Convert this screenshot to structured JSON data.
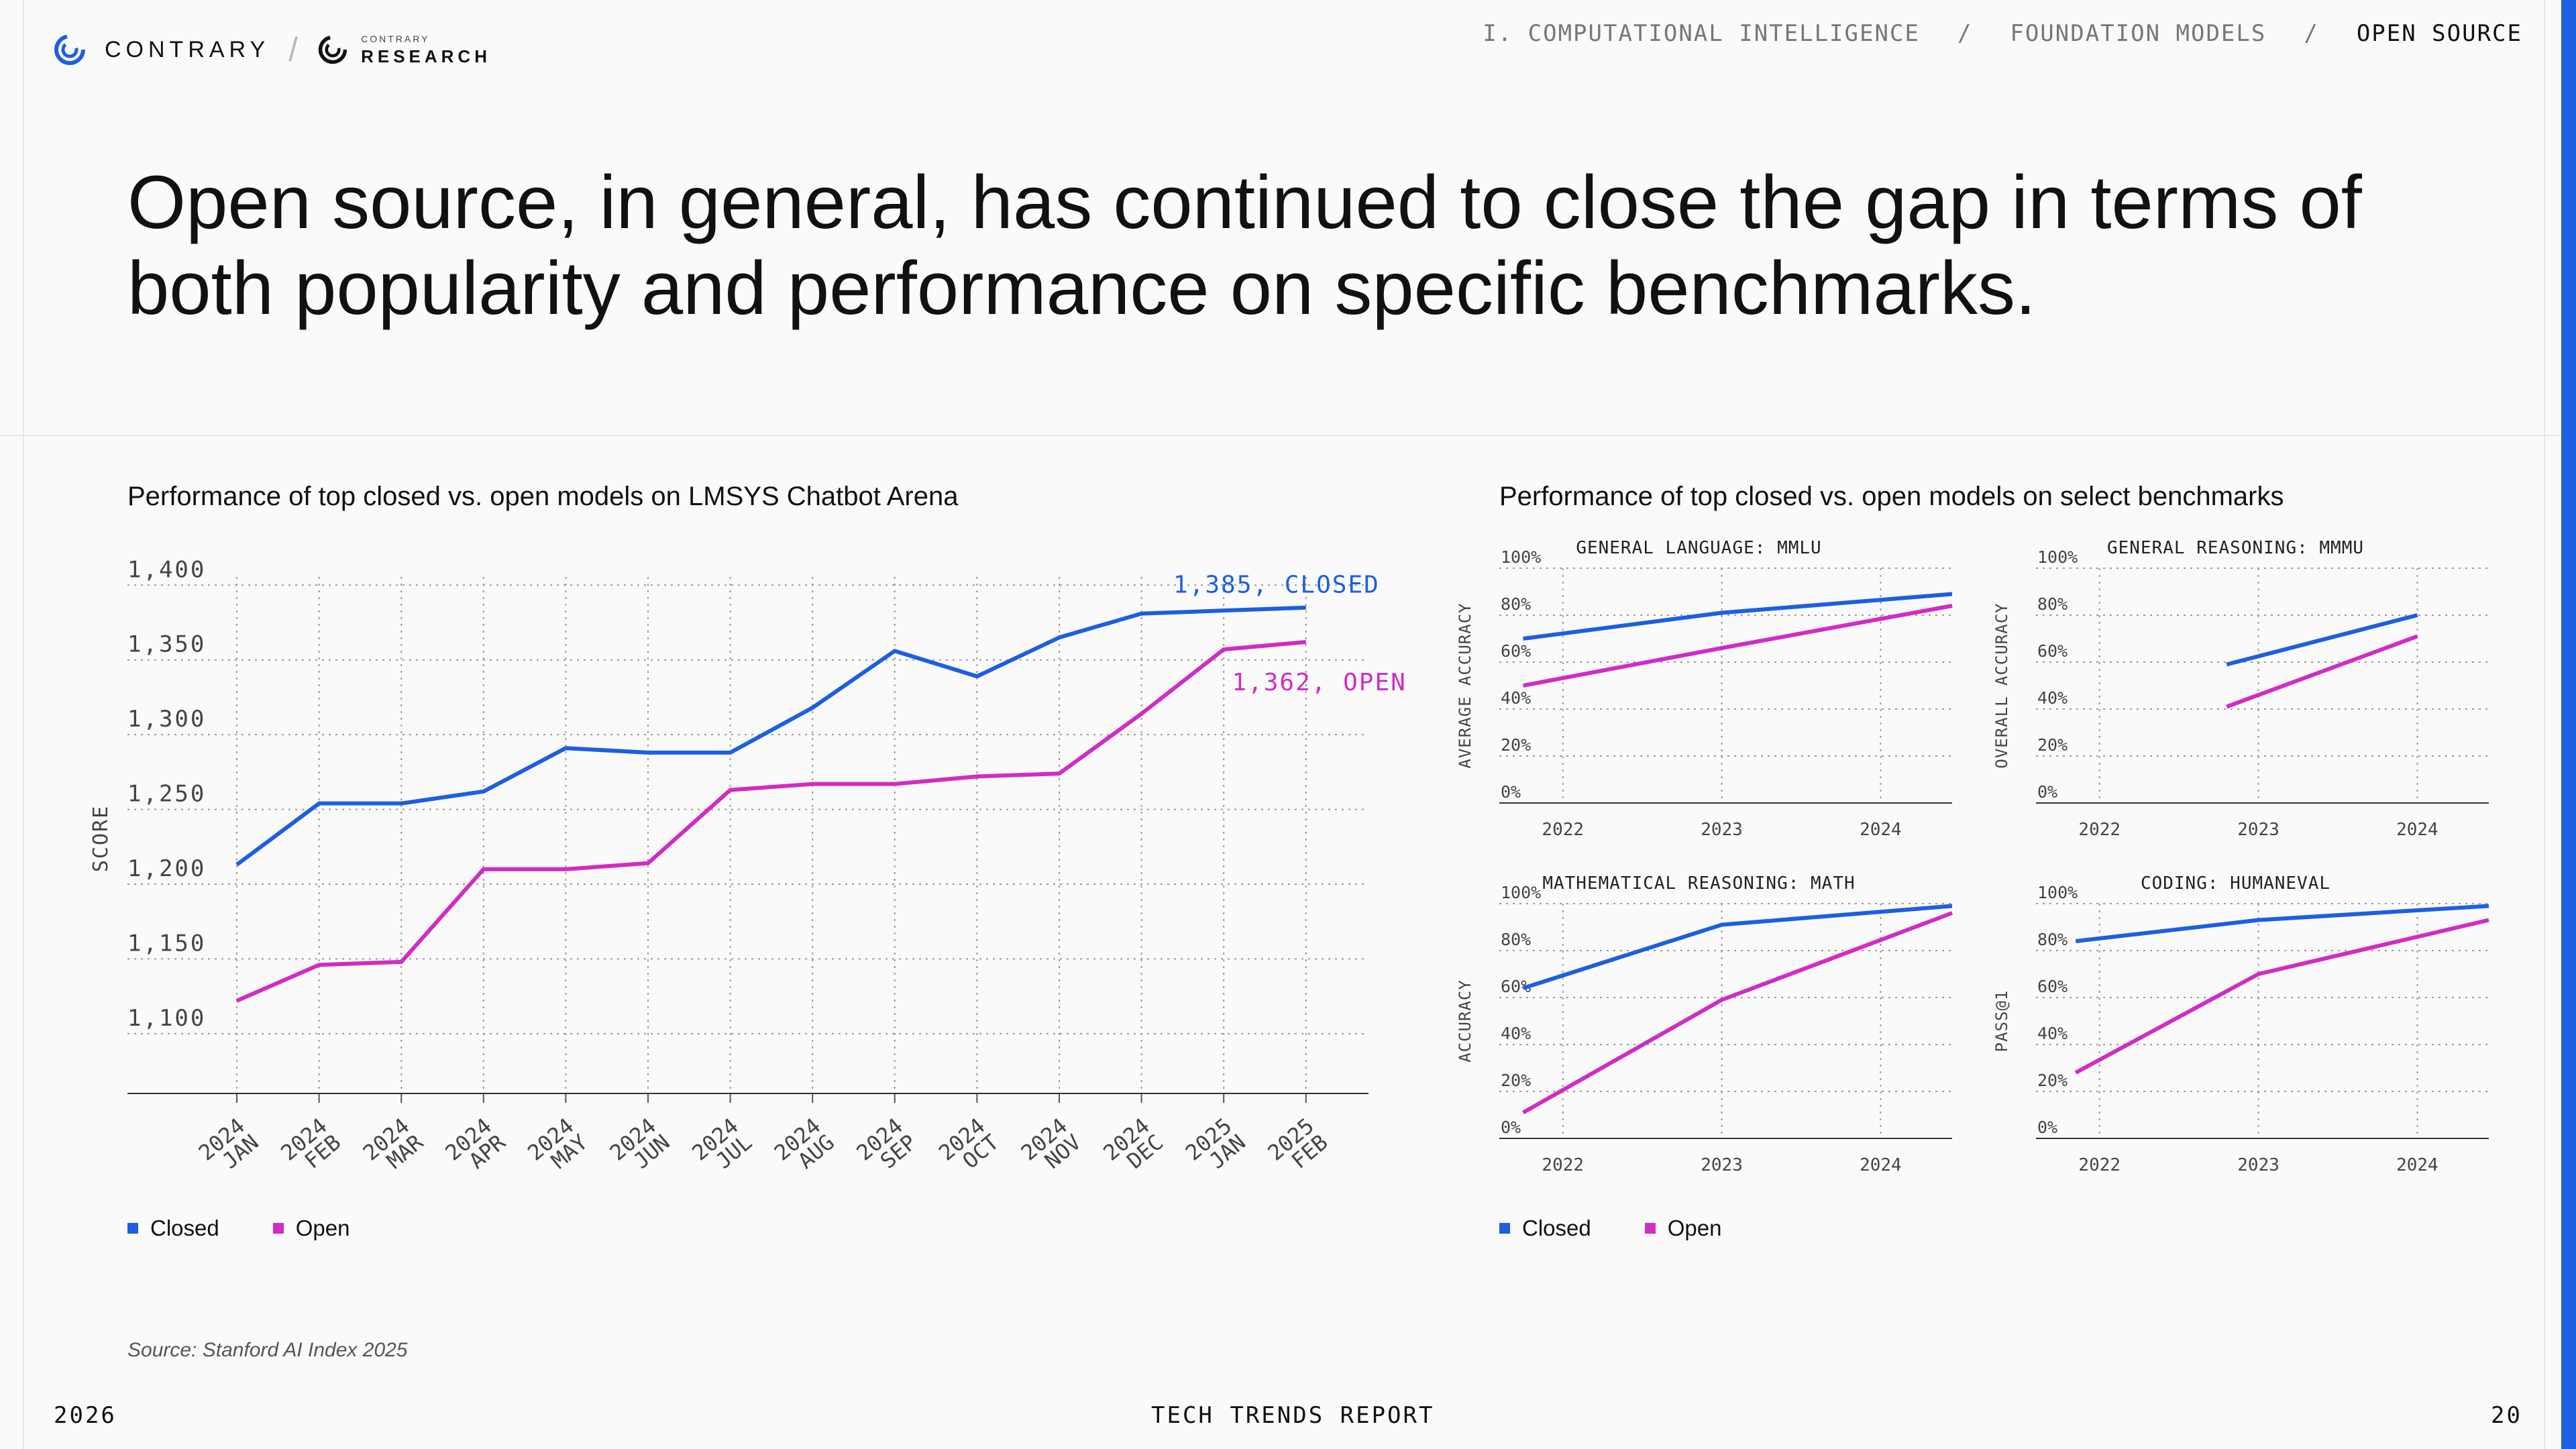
{
  "brand": {
    "name": "CONTRARY",
    "research_small": "CONTRARY",
    "research_big": "RESEARCH"
  },
  "breadcrumb": [
    "I. COMPUTATIONAL INTELLIGENCE",
    "FOUNDATION MODELS",
    "OPEN SOURCE"
  ],
  "breadcrumb_sep": "/",
  "headline": "Open source, in general, has continued to close the gap in terms of both popularity and performance on specific benchmarks.",
  "colors": {
    "closed": "#1d5fe0",
    "open": "#d12cc4",
    "accent": "#1d5fe0"
  },
  "left_chart": {
    "title": "Performance of top closed vs. open models on LMSYS Chatbot Arena"
  },
  "right_panel": {
    "title": "Performance of top closed vs. open models on select benchmarks"
  },
  "legend": {
    "closed": "Closed",
    "open": "Open"
  },
  "source": "Source: Stanford AI Index 2025",
  "footer": {
    "year": "2026",
    "report": "TECH TRENDS REPORT",
    "page": "20"
  },
  "chart_data": [
    {
      "type": "line",
      "title": "Performance of top closed vs. open models on LMSYS Chatbot Arena",
      "ylabel": "SCORE",
      "ylim": [
        1060,
        1410
      ],
      "yticks": [
        "1,400",
        "1,350",
        "1,300",
        "1,250",
        "1,200",
        "1,150",
        "1,100"
      ],
      "ytick_values": [
        1400,
        1350,
        1300,
        1250,
        1200,
        1150,
        1100
      ],
      "categories": [
        [
          "2024",
          "JAN"
        ],
        [
          "2024",
          "FEB"
        ],
        [
          "2024",
          "MAR"
        ],
        [
          "2024",
          "APR"
        ],
        [
          "2024",
          "MAY"
        ],
        [
          "2024",
          "JUN"
        ],
        [
          "2024",
          "JUL"
        ],
        [
          "2024",
          "AUG"
        ],
        [
          "2024",
          "SEP"
        ],
        [
          "2024",
          "OCT"
        ],
        [
          "2024",
          "NOV"
        ],
        [
          "2024",
          "DEC"
        ],
        [
          "2025",
          "JAN"
        ],
        [
          "2025",
          "FEB"
        ]
      ],
      "series": [
        {
          "name": "Closed",
          "color": "#1d5fe0",
          "values": [
            1213,
            1254,
            1254,
            1262,
            1291,
            1288,
            1288,
            1318,
            1356,
            1339,
            1365,
            1381,
            1383,
            1385
          ]
        },
        {
          "name": "Open",
          "color": "#d12cc4",
          "values": [
            1122,
            1146,
            1148,
            1210,
            1210,
            1214,
            1263,
            1267,
            1267,
            1272,
            1274,
            1314,
            1357,
            1362
          ]
        }
      ],
      "annotations": {
        "closed": "1,385, CLOSED",
        "open": "1,362, OPEN"
      },
      "grid": true,
      "legend_position": "bottom-left"
    },
    {
      "type": "line",
      "title": "GENERAL LANGUAGE: MMLU",
      "ylabel": "AVERAGE ACCURACY",
      "ylim": [
        0,
        100
      ],
      "yticks": [
        "100%",
        "80%",
        "60%",
        "40%",
        "20%",
        "0%"
      ],
      "xticks": [
        "2022",
        "2023",
        "2024"
      ],
      "xlim": [
        2021.6,
        2024.45
      ],
      "series": [
        {
          "name": "Closed",
          "color": "#1d5fe0",
          "x": [
            2021.75,
            2023.0,
            2024.45
          ],
          "values": [
            70,
            81,
            89
          ]
        },
        {
          "name": "Open",
          "color": "#d12cc4",
          "x": [
            2021.75,
            2023.0,
            2024.45
          ],
          "values": [
            50,
            66,
            84
          ]
        }
      ]
    },
    {
      "type": "line",
      "title": "GENERAL REASONING: MMMU",
      "ylabel": "OVERALL ACCURACY",
      "ylim": [
        0,
        100
      ],
      "yticks": [
        "100%",
        "80%",
        "60%",
        "40%",
        "20%",
        "0%"
      ],
      "xticks": [
        "2022",
        "2023",
        "2024"
      ],
      "xlim": [
        2021.6,
        2024.45
      ],
      "series": [
        {
          "name": "Closed",
          "color": "#1d5fe0",
          "x": [
            2022.8,
            2024.0
          ],
          "values": [
            59,
            80
          ]
        },
        {
          "name": "Open",
          "color": "#d12cc4",
          "x": [
            2022.8,
            2024.0
          ],
          "values": [
            41,
            71
          ]
        }
      ]
    },
    {
      "type": "line",
      "title": "MATHEMATICAL REASONING: MATH",
      "ylabel": "ACCURACY",
      "ylim": [
        0,
        100
      ],
      "yticks": [
        "100%",
        "80%",
        "60%",
        "40%",
        "20%",
        "0%"
      ],
      "xticks": [
        "2022",
        "2023",
        "2024"
      ],
      "xlim": [
        2021.6,
        2024.45
      ],
      "series": [
        {
          "name": "Closed",
          "color": "#1d5fe0",
          "x": [
            2021.75,
            2023.0,
            2024.45
          ],
          "values": [
            64,
            91,
            99
          ]
        },
        {
          "name": "Open",
          "color": "#d12cc4",
          "x": [
            2021.75,
            2023.0,
            2024.45
          ],
          "values": [
            11,
            59,
            96
          ]
        }
      ]
    },
    {
      "type": "line",
      "title": "CODING: HUMANEVAL",
      "ylabel": "PASS@1",
      "ylim": [
        0,
        100
      ],
      "yticks": [
        "100%",
        "80%",
        "60%",
        "40%",
        "20%",
        "0%"
      ],
      "xticks": [
        "2022",
        "2023",
        "2024"
      ],
      "xlim": [
        2021.6,
        2024.45
      ],
      "series": [
        {
          "name": "Closed",
          "color": "#1d5fe0",
          "x": [
            2021.85,
            2023.0,
            2024.45
          ],
          "values": [
            84,
            93,
            99
          ]
        },
        {
          "name": "Open",
          "color": "#d12cc4",
          "x": [
            2021.85,
            2023.0,
            2024.45
          ],
          "values": [
            28,
            70,
            93
          ]
        }
      ]
    }
  ]
}
